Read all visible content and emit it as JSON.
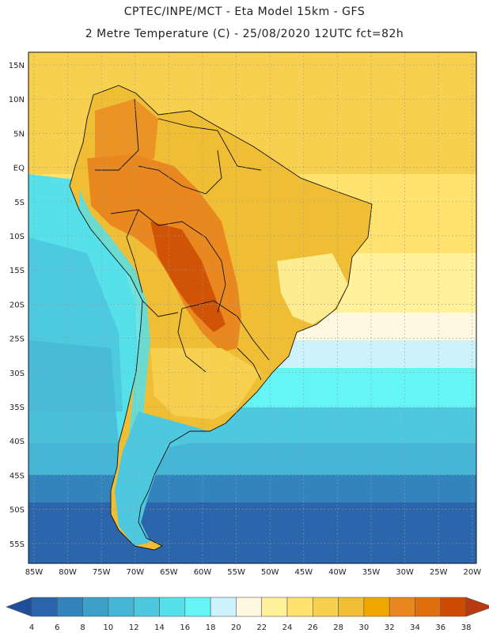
{
  "header": {
    "line1": "CPTEC/INPE/MCT -   Eta Model 15km - GFS",
    "line2": "2 Metre Temperature (C) - 25/08/2020 12UTC fct=82h"
  },
  "map": {
    "region": "South America",
    "lat_labels": [
      "15N",
      "10N",
      "5N",
      "EQ",
      "5S",
      "10S",
      "15S",
      "20S",
      "25S",
      "30S",
      "35S",
      "40S",
      "45S",
      "50S",
      "55S"
    ],
    "lon_labels": [
      "85W",
      "80W",
      "75W",
      "70W",
      "65W",
      "60W",
      "55W",
      "50W",
      "45W",
      "40W",
      "35W",
      "30W",
      "25W",
      "20W"
    ]
  },
  "colorbar": {
    "labels": [
      "4",
      "6",
      "8",
      "10",
      "12",
      "14",
      "16",
      "18",
      "20",
      "22",
      "24",
      "26",
      "28",
      "30",
      "32",
      "34",
      "36",
      "38"
    ],
    "colors": [
      "#2b66ad",
      "#3384bc",
      "#3da0c9",
      "#46b6d6",
      "#4dc8df",
      "#55e0ea",
      "#66f5f5",
      "#ccf2fb",
      "#fff8e0",
      "#fff29a",
      "#ffe36e",
      "#f7d04f",
      "#f0be35",
      "#f0a800",
      "#ea8820",
      "#e06e0c",
      "#cc4a02",
      "#b93a10"
    ],
    "low_color": "#1f4e9c",
    "high_color": "#b93a10"
  }
}
